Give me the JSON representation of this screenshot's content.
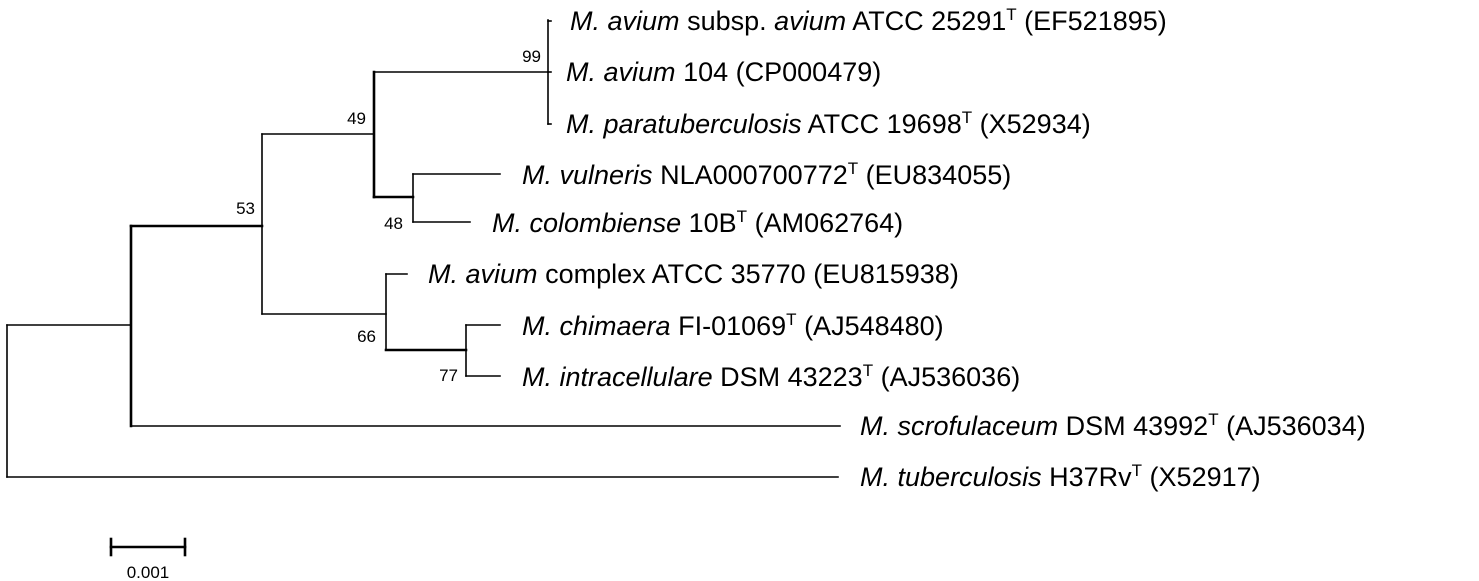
{
  "taxa": [
    {
      "id": "avium-avium",
      "genus": "M.",
      "species": "avium",
      "rest": "subsp.",
      "subsp": "avium",
      "strain": "ATCC 25291",
      "type_strain": "T",
      "accession": "(EF521895)"
    },
    {
      "id": "avium-104",
      "genus": "M.",
      "species": "avium",
      "rest": "",
      "subsp": "",
      "strain": "104",
      "type_strain": "",
      "accession": "(CP000479)"
    },
    {
      "id": "paratuberculosis",
      "genus": "M.",
      "species": "paratuberculosis",
      "rest": "",
      "subsp": "",
      "strain": "ATCC 19698",
      "type_strain": "T",
      "accession": "(X52934)"
    },
    {
      "id": "vulneris",
      "genus": "M.",
      "species": "vulneris",
      "rest": "",
      "subsp": "",
      "strain": "NLA000700772",
      "type_strain": "T",
      "accession": "(EU834055)"
    },
    {
      "id": "colombiense",
      "genus": "M.",
      "species": "colombiense",
      "rest": "",
      "subsp": "",
      "strain": "10B",
      "type_strain": "T",
      "accession": "(AM062764)"
    },
    {
      "id": "avium-complex",
      "genus": "M.",
      "species": "avium",
      "rest": "complex",
      "subsp": "",
      "strain": "ATCC 35770",
      "type_strain": "",
      "accession": "(EU815938)"
    },
    {
      "id": "chimaera",
      "genus": "M.",
      "species": "chimaera",
      "rest": "",
      "subsp": "",
      "strain": "FI-01069",
      "type_strain": "T",
      "accession": "(AJ548480)"
    },
    {
      "id": "intracellulare",
      "genus": "M.",
      "species": "intracellulare",
      "rest": "",
      "subsp": "",
      "strain": "DSM 43223",
      "type_strain": "T",
      "accession": "(AJ536036)"
    },
    {
      "id": "scrofulaceum",
      "genus": "M.",
      "species": "scrofulaceum",
      "rest": "",
      "subsp": "",
      "strain": "DSM 43992",
      "type_strain": "T",
      "accession": "(AJ536034)"
    },
    {
      "id": "tuberculosis",
      "genus": "M.",
      "species": "tuberculosis",
      "rest": "",
      "subsp": "",
      "strain": "H37Rv",
      "type_strain": "T",
      "accession": "(X52917)"
    }
  ],
  "bootstrap": {
    "avium_clade": "99",
    "mac_core": "49",
    "vulneris_colombiense": "48",
    "mac_inner": "53",
    "complex_clade": "66",
    "chimaera_intracellulare": "77"
  },
  "scale_bar": {
    "value": 0.001,
    "label": "0.001"
  }
}
